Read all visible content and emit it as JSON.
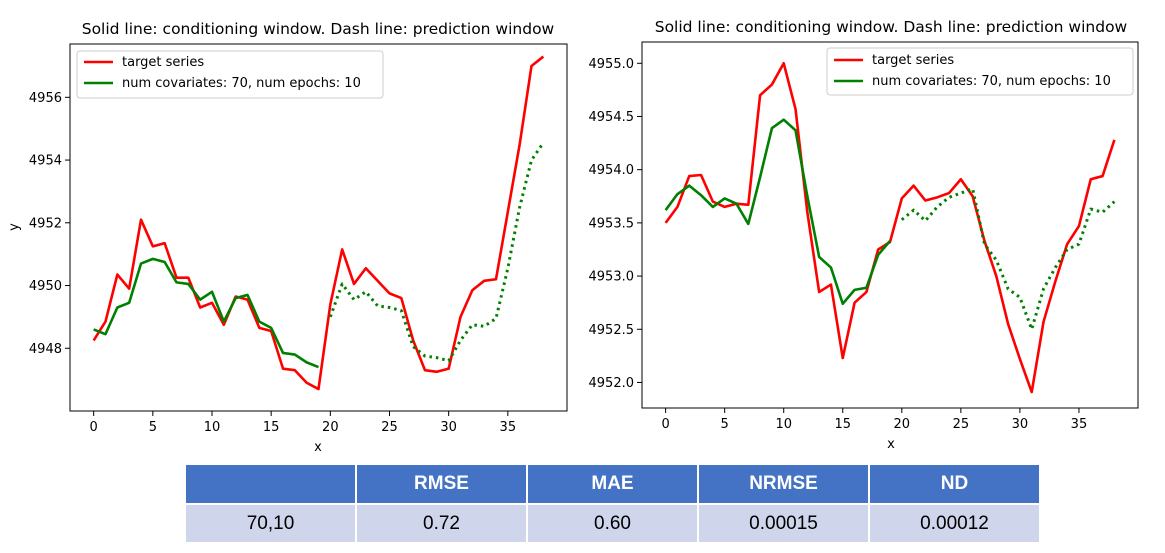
{
  "chart_data": [
    {
      "type": "line",
      "title": "Solid line: conditioning window. Dash line: prediction window",
      "xlabel": "x",
      "ylabel": "y",
      "xlim": [
        -2,
        40
      ],
      "ylim": [
        4946.0,
        4957.7
      ],
      "xticks": [
        0,
        5,
        10,
        15,
        20,
        25,
        30,
        35
      ],
      "yticks": [
        4948,
        4950,
        4952,
        4954,
        4956
      ],
      "conditioning_end": 19,
      "legend_position": "upper left",
      "series": [
        {
          "name": "target series",
          "color": "#ff0000",
          "style": "solid",
          "x": [
            0,
            1,
            2,
            3,
            4,
            5,
            6,
            7,
            8,
            9,
            10,
            11,
            12,
            13,
            14,
            15,
            16,
            17,
            18,
            19,
            20,
            21,
            22,
            23,
            24,
            25,
            26,
            27,
            28,
            29,
            30,
            31,
            32,
            33,
            34,
            35,
            36,
            37,
            38
          ],
          "y": [
            4948.25,
            4948.85,
            4950.35,
            4949.9,
            4952.1,
            4951.25,
            4951.35,
            4950.25,
            4950.25,
            4949.3,
            4949.45,
            4948.75,
            4949.65,
            4949.55,
            4948.65,
            4948.55,
            4947.35,
            4947.3,
            4946.9,
            4946.7,
            4949.4,
            4951.15,
            4950.05,
            4950.55,
            4950.15,
            4949.75,
            4949.6,
            4948.25,
            4947.3,
            4947.25,
            4947.35,
            4949.0,
            4949.85,
            4950.15,
            4950.2,
            4952.35,
            4954.5,
            4957.0,
            4957.3
          ]
        },
        {
          "name": "num covariates: 70, num epochs: 10",
          "color": "#008000",
          "style": "solid-then-dotted",
          "x": [
            0,
            1,
            2,
            3,
            4,
            5,
            6,
            7,
            8,
            9,
            10,
            11,
            12,
            13,
            14,
            15,
            16,
            17,
            18,
            19,
            20,
            21,
            22,
            23,
            24,
            25,
            26,
            27,
            28,
            29,
            30,
            31,
            32,
            33,
            34,
            35,
            36,
            37,
            38
          ],
          "y": [
            4948.6,
            4948.45,
            4949.3,
            4949.45,
            4950.7,
            4950.85,
            4950.75,
            4950.1,
            4950.05,
            4949.55,
            4949.8,
            4948.85,
            4949.6,
            4949.7,
            4948.85,
            4948.65,
            4947.85,
            4947.8,
            4947.55,
            4947.4,
            4949.0,
            4950.05,
            4949.55,
            4949.8,
            4949.35,
            4949.3,
            4949.2,
            4948.05,
            4947.75,
            4947.7,
            4947.6,
            4948.25,
            4948.75,
            4948.7,
            4948.95,
            4950.55,
            4952.5,
            4954.0,
            4954.55
          ]
        }
      ]
    },
    {
      "type": "line",
      "title": "Solid line: conditioning window. Dash line: prediction window",
      "xlabel": "x",
      "ylabel": "",
      "xlim": [
        -2,
        40
      ],
      "ylim": [
        4951.76,
        4955.2
      ],
      "xticks": [
        0,
        5,
        10,
        15,
        20,
        25,
        30,
        35
      ],
      "yticks": [
        4952.0,
        4952.5,
        4953.0,
        4953.5,
        4954.0,
        4954.5,
        4955.0
      ],
      "conditioning_end": 19,
      "legend_position": "upper right",
      "series": [
        {
          "name": "target series",
          "color": "#ff0000",
          "style": "solid",
          "x": [
            0,
            1,
            2,
            3,
            4,
            5,
            6,
            7,
            8,
            9,
            10,
            11,
            12,
            13,
            14,
            15,
            16,
            17,
            18,
            19,
            20,
            21,
            22,
            23,
            24,
            25,
            26,
            27,
            28,
            29,
            30,
            31,
            32,
            33,
            34,
            35,
            36,
            37,
            38
          ],
          "y": [
            4953.5,
            4953.65,
            4953.94,
            4953.95,
            4953.7,
            4953.65,
            4953.68,
            4953.67,
            4954.7,
            4954.8,
            4955.0,
            4954.57,
            4953.6,
            4952.85,
            4952.92,
            4952.23,
            4952.75,
            4952.85,
            4953.25,
            4953.32,
            4953.73,
            4953.85,
            4953.71,
            4953.74,
            4953.78,
            4953.91,
            4953.75,
            4953.33,
            4953.0,
            4952.55,
            4952.22,
            4951.91,
            4952.57,
            4952.95,
            4953.3,
            4953.47,
            4953.91,
            4953.94,
            4954.28
          ]
        },
        {
          "name": "num covariates: 70, num epochs: 10",
          "color": "#008000",
          "style": "solid-then-dotted",
          "x": [
            0,
            1,
            2,
            3,
            4,
            5,
            6,
            7,
            8,
            9,
            10,
            11,
            12,
            13,
            14,
            15,
            16,
            17,
            18,
            19,
            20,
            21,
            22,
            23,
            24,
            25,
            26,
            27,
            28,
            29,
            30,
            31,
            32,
            33,
            34,
            35,
            36,
            37,
            38
          ],
          "y": [
            4953.62,
            4953.77,
            4953.85,
            4953.76,
            4953.65,
            4953.73,
            4953.68,
            4953.49,
            4953.93,
            4954.39,
            4954.47,
            4954.37,
            4953.75,
            4953.18,
            4953.08,
            4952.74,
            4952.87,
            4952.89,
            4953.2,
            4953.33,
            4953.53,
            4953.62,
            4953.52,
            4953.65,
            4953.74,
            4953.78,
            4953.82,
            4953.3,
            4953.15,
            4952.88,
            4952.8,
            4952.5,
            4952.88,
            4953.08,
            4953.25,
            4953.3,
            4953.63,
            4953.6,
            4953.7
          ]
        }
      ]
    }
  ],
  "metrics_table": {
    "headers": [
      "",
      "RMSE",
      "MAE",
      "NRMSE",
      "ND"
    ],
    "row": [
      "70,10",
      "0.72",
      "0.60",
      "0.00015",
      "0.00012"
    ]
  }
}
